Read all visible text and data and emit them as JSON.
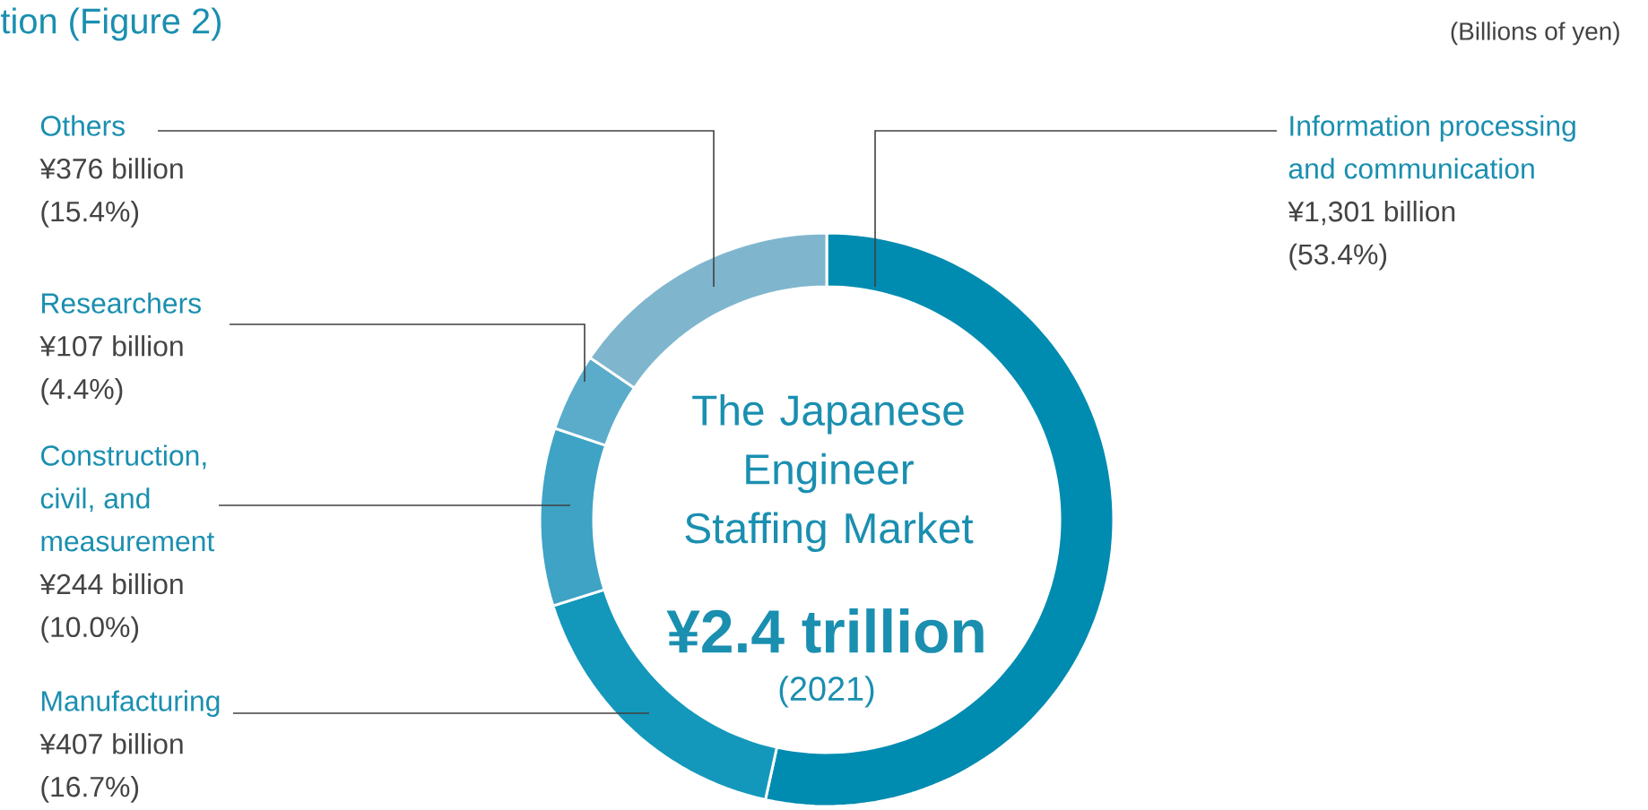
{
  "chart_data": {
    "type": "donut",
    "title": "tion (Figure 2)",
    "subtitle": "The Japanese Engineer Staffing Market",
    "categories": [
      "Information processing and communication",
      "Manufacturing",
      "Construction, civil, and measurement",
      "Researchers",
      "Others"
    ],
    "values": [
      1301,
      407,
      244,
      107,
      376
    ],
    "colors": [
      "#008bb0",
      "#1398bb",
      "#3ea3c5",
      "#5aacca",
      "#7fb6ce"
    ],
    "value_labels": [
      "¥1,301 billion",
      "¥407 billion",
      "¥244 billion",
      "¥107 billion",
      "¥376 billion"
    ],
    "annotations": [
      "(53.4%)",
      "(16.7%)",
      "(10.0%)",
      "(4.4%)",
      "(15.4%)",
      "¥2.4 trillion",
      "(2021)",
      "(Billions of yen)"
    ]
  }
}
